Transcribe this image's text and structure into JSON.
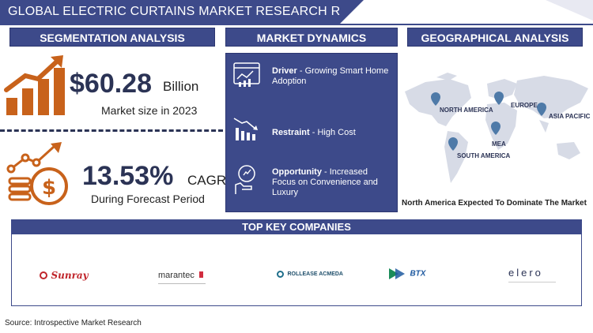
{
  "header": {
    "title": "GLOBAL ELECTRIC CURTAINS MARKET RESEARCH REPORT"
  },
  "segmentation": {
    "title": "SEGMENTATION ANALYSIS",
    "market_size_value": "$60.28",
    "market_size_unit": "Billion",
    "market_size_label": "Market size in 2023",
    "cagr_value": "13.53%",
    "cagr_unit": "CAGR",
    "cagr_label": "During Forecast Period"
  },
  "dynamics": {
    "title": "MARKET DYNAMICS",
    "items": [
      {
        "label": "Driver",
        "text": "- Growing Smart Home Adoption",
        "icon": "smart-home-chart-icon"
      },
      {
        "label": "Restraint",
        "text": "- High Cost",
        "icon": "declining-chart-icon"
      },
      {
        "label": "Opportunity",
        "text": "- Increased Focus on Convenience and Luxury",
        "icon": "hand-growth-icon"
      }
    ]
  },
  "geography": {
    "title": "GEOGRAPHICAL ANALYSIS",
    "regions": [
      "NORTH AMERICA",
      "EUROPE",
      "ASIA PACIFIC",
      "MEA",
      "SOUTH AMERICA"
    ],
    "caption": "North America Expected To Dominate The Market"
  },
  "companies": {
    "title": "TOP KEY COMPANIES",
    "logos": [
      "Sunray",
      "marantec",
      "ROLLEASE ACMEDA",
      "BTX",
      "elero"
    ]
  },
  "colors": {
    "navy": "#3d4a8a",
    "accent_orange": "#c8621b",
    "dark_text": "#2b3355"
  },
  "source": "Source: Introspective Market Research"
}
